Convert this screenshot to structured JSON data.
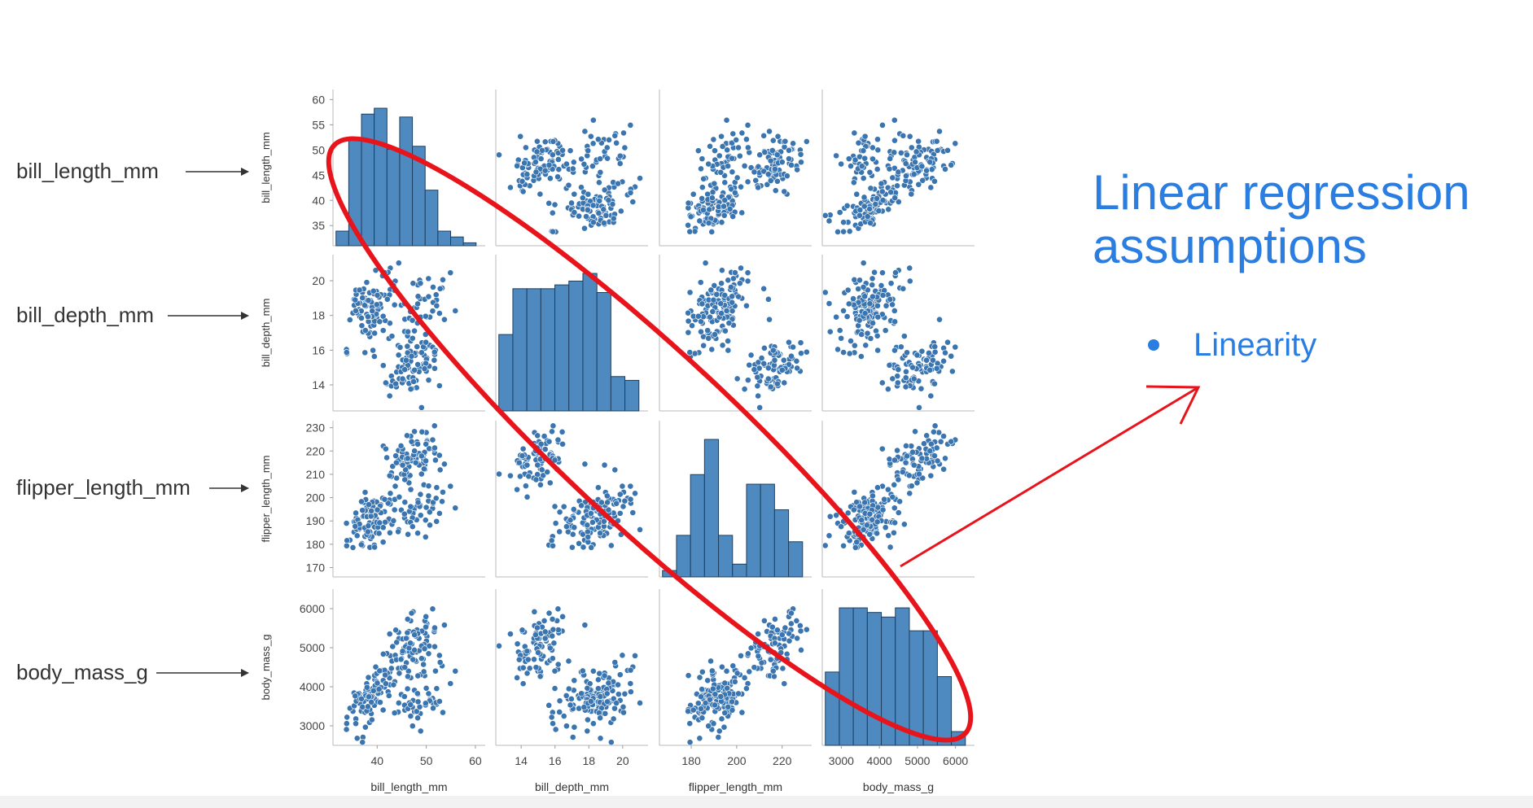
{
  "slide": {
    "title_line1": "Linear regression",
    "title_line2": "assumptions",
    "bullets": [
      "Linearity"
    ]
  },
  "row_labels": [
    "bill_length_mm",
    "bill_depth_mm",
    "flipper_length_mm",
    "body_mass_g"
  ],
  "colors": {
    "point": "#3a75b0",
    "bar": "#4e8abf",
    "bar_edge": "#1f3f5f",
    "annotation": "#e8141b",
    "arrow": "#333333",
    "accent_text": "#2a7de1"
  },
  "chart_data": {
    "type": "scatter",
    "variables": [
      "bill_length_mm",
      "bill_depth_mm",
      "flipper_length_mm",
      "body_mass_g"
    ],
    "axis_ranges": {
      "bill_length_mm": [
        31,
        62
      ],
      "bill_depth_mm": [
        12.5,
        21.5
      ],
      "flipper_length_mm": [
        166,
        233
      ],
      "body_mass_g": [
        2500,
        6500
      ]
    },
    "ticks": {
      "bill_length_mm": [
        40,
        50,
        60
      ],
      "bill_depth_mm": [
        14,
        16,
        18,
        20
      ],
      "flipper_length_mm": [
        180,
        200,
        220
      ],
      "body_mass_g": [
        3000,
        4000,
        5000,
        6000
      ]
    },
    "y_ticks": {
      "bill_length_mm": [
        35,
        40,
        45,
        50,
        55,
        60
      ],
      "bill_depth_mm": [
        14,
        16,
        18,
        20
      ],
      "flipper_length_mm": [
        170,
        180,
        190,
        200,
        210,
        220,
        230
      ],
      "body_mass_g": [
        3000,
        4000,
        5000,
        6000
      ]
    },
    "histograms": {
      "bill_length_mm": [
        5,
        37,
        45,
        47,
        33,
        44,
        34,
        19,
        5,
        3,
        1
      ],
      "bill_depth_mm": [
        20,
        32,
        32,
        32,
        33,
        34,
        36,
        31,
        9,
        8
      ],
      "flipper_length_mm": [
        2,
        13,
        32,
        43,
        13,
        4,
        29,
        29,
        21,
        11
      ],
      "body_mass_g": [
        16,
        30,
        30,
        29,
        28,
        30,
        25,
        25,
        15,
        3
      ]
    },
    "grid": false,
    "legend": "none"
  }
}
